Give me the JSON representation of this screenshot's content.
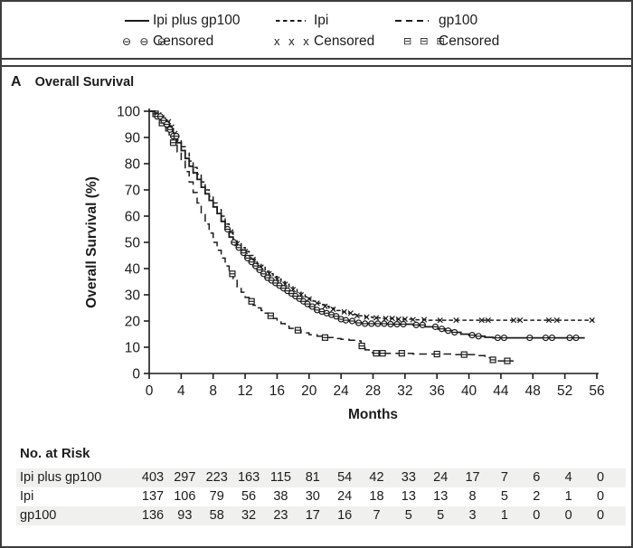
{
  "panel_label": "A",
  "panel_title": "Overall Survival",
  "colors": {
    "ink": "#1c1c1c",
    "stripe": "#f0f0ee",
    "border": "#3d3d3d"
  },
  "legend": {
    "series": [
      {
        "label": "Ipi plus gp100",
        "line": "solid",
        "censor_symbol": "⊖ ⊖ ⊖",
        "censor_label": "Censored"
      },
      {
        "label": "Ipi",
        "line": "dash",
        "censor_symbol": "x x x",
        "censor_label": "Censored"
      },
      {
        "label": "gp100",
        "line": "longdash",
        "censor_symbol": "⊟ ⊟ ⊟",
        "censor_label": "Censored"
      }
    ]
  },
  "chart_data": {
    "type": "line",
    "subtype": "kaplan-meier-step",
    "title": "Overall Survival",
    "xlabel": "Months",
    "ylabel": "Overall Survival (%)",
    "xlim": [
      0,
      56
    ],
    "ylim": [
      0,
      100
    ],
    "xticks": [
      0,
      4,
      8,
      12,
      16,
      20,
      24,
      28,
      32,
      36,
      40,
      44,
      48,
      52,
      56
    ],
    "yticks": [
      0,
      10,
      20,
      30,
      40,
      50,
      60,
      70,
      80,
      90,
      100
    ],
    "grid": false,
    "legend_position": "top",
    "series": [
      {
        "name": "gp100",
        "style": "longdash",
        "censor_marker": "square",
        "points": [
          [
            0,
            100
          ],
          [
            0.7,
            99
          ],
          [
            1,
            97.5
          ],
          [
            1.5,
            95.5
          ],
          [
            2,
            93.5
          ],
          [
            2.5,
            91
          ],
          [
            3,
            88
          ],
          [
            3.5,
            84.5
          ],
          [
            4,
            81
          ],
          [
            4.5,
            77
          ],
          [
            5,
            73
          ],
          [
            5.5,
            69
          ],
          [
            6,
            65
          ],
          [
            6.5,
            61
          ],
          [
            7,
            57
          ],
          [
            7.5,
            53.5
          ],
          [
            8,
            50
          ],
          [
            8.5,
            47
          ],
          [
            9,
            44
          ],
          [
            9.5,
            41
          ],
          [
            10,
            38
          ],
          [
            10.5,
            35.5
          ],
          [
            11,
            33
          ],
          [
            11.5,
            31
          ],
          [
            12,
            29
          ],
          [
            12.5,
            27.5
          ],
          [
            13,
            26
          ],
          [
            13.5,
            25
          ],
          [
            14,
            24
          ],
          [
            14.5,
            23
          ],
          [
            15,
            22
          ],
          [
            15.5,
            21
          ],
          [
            16,
            20
          ],
          [
            16.5,
            19
          ],
          [
            17,
            18
          ],
          [
            17.5,
            17.2
          ],
          [
            18,
            16.5
          ],
          [
            19,
            15.5
          ],
          [
            20,
            14.8
          ],
          [
            21,
            14.2
          ],
          [
            22,
            13.7
          ],
          [
            23,
            13.3
          ],
          [
            24,
            13
          ],
          [
            25,
            12.7
          ],
          [
            26,
            12.4
          ],
          [
            26.5,
            10.5
          ],
          [
            27,
            9
          ],
          [
            27.5,
            8
          ],
          [
            28,
            7.7
          ],
          [
            33,
            7.4
          ],
          [
            38,
            7.2
          ],
          [
            41,
            6.8
          ],
          [
            42,
            6
          ],
          [
            42.8,
            5.2
          ],
          [
            43.5,
            4.8
          ],
          [
            45.5,
            4.5
          ]
        ],
        "censor_months": [
          0.8,
          1.6,
          2.4,
          3.0,
          10.4,
          12.8,
          15.2,
          18.6,
          22.0,
          26.6,
          28.4,
          29.2,
          31.6,
          36.0,
          39.4,
          43.0,
          44.8
        ]
      },
      {
        "name": "Ipi",
        "style": "dash",
        "censor_marker": "x",
        "points": [
          [
            0,
            100
          ],
          [
            0.7,
            99.3
          ],
          [
            1,
            98.6
          ],
          [
            1.5,
            97.5
          ],
          [
            2,
            96
          ],
          [
            2.5,
            94
          ],
          [
            3,
            91.5
          ],
          [
            3.5,
            89
          ],
          [
            4,
            86.5
          ],
          [
            4.5,
            84
          ],
          [
            5,
            81
          ],
          [
            5.5,
            78.5
          ],
          [
            6,
            76
          ],
          [
            6.5,
            73
          ],
          [
            7,
            70
          ],
          [
            7.5,
            67.5
          ],
          [
            8,
            65
          ],
          [
            8.5,
            62.5
          ],
          [
            9,
            60
          ],
          [
            9.5,
            57
          ],
          [
            10,
            54
          ],
          [
            10.5,
            51
          ],
          [
            11,
            49.5
          ],
          [
            11.5,
            48
          ],
          [
            12,
            46.5
          ],
          [
            12.5,
            45
          ],
          [
            13,
            43.5
          ],
          [
            13.5,
            42
          ],
          [
            14,
            40.5
          ],
          [
            14.5,
            39
          ],
          [
            15,
            38
          ],
          [
            15.5,
            37
          ],
          [
            16,
            36
          ],
          [
            16.5,
            35
          ],
          [
            17,
            34
          ],
          [
            17.5,
            33
          ],
          [
            18,
            32
          ],
          [
            18.5,
            31
          ],
          [
            19,
            30
          ],
          [
            19.5,
            29.2
          ],
          [
            20,
            28.4
          ],
          [
            20.5,
            27.6
          ],
          [
            21,
            26.8
          ],
          [
            21.5,
            26.2
          ],
          [
            22,
            25.6
          ],
          [
            22.5,
            25
          ],
          [
            23,
            24.5
          ],
          [
            23.5,
            24
          ],
          [
            24,
            23.5
          ],
          [
            25,
            23
          ],
          [
            25.5,
            22.5
          ],
          [
            26,
            22
          ],
          [
            27,
            21.5
          ],
          [
            28,
            21.2
          ],
          [
            29,
            21
          ],
          [
            31,
            20.7
          ],
          [
            33,
            20.5
          ],
          [
            35,
            20.3
          ],
          [
            55.6,
            20.3
          ]
        ],
        "censor_months": [
          1.2,
          1.6,
          2.0,
          2.4,
          2.8,
          3.2,
          10.2,
          11.0,
          12.0,
          13.0,
          14.0,
          15.0,
          16.0,
          17.0,
          18.0,
          19.0,
          20.0,
          21.0,
          22.0,
          23.0,
          24.4,
          25.2,
          26.0,
          27.2,
          28.4,
          29.6,
          30.4,
          31.2,
          32.0,
          33.0,
          34.4,
          36.4,
          38.4,
          41.6,
          42.4,
          45.6,
          46.4,
          50.0,
          51.0,
          55.4
        ]
      },
      {
        "name": "Ipi plus gp100",
        "style": "solid",
        "censor_marker": "circle",
        "points": [
          [
            0,
            100
          ],
          [
            0.7,
            99
          ],
          [
            1,
            98
          ],
          [
            1.5,
            96.5
          ],
          [
            2,
            95
          ],
          [
            2.5,
            93
          ],
          [
            3,
            90.5
          ],
          [
            3.5,
            88
          ],
          [
            4,
            85
          ],
          [
            4.5,
            82
          ],
          [
            5,
            79
          ],
          [
            5.5,
            76.5
          ],
          [
            6,
            74
          ],
          [
            6.5,
            71
          ],
          [
            7,
            68.5
          ],
          [
            7.5,
            66
          ],
          [
            8,
            63.5
          ],
          [
            8.5,
            61
          ],
          [
            9,
            58
          ],
          [
            9.5,
            55
          ],
          [
            10,
            52
          ],
          [
            10.5,
            50
          ],
          [
            11,
            48
          ],
          [
            11.5,
            46
          ],
          [
            12,
            44
          ],
          [
            12.5,
            42.5
          ],
          [
            13,
            41
          ],
          [
            13.5,
            39.5
          ],
          [
            14,
            38
          ],
          [
            14.5,
            36.5
          ],
          [
            15,
            35.5
          ],
          [
            15.5,
            34.5
          ],
          [
            16,
            33.5
          ],
          [
            16.5,
            32.5
          ],
          [
            17,
            31.5
          ],
          [
            17.5,
            30.5
          ],
          [
            18,
            29.5
          ],
          [
            18.5,
            28.5
          ],
          [
            19,
            27.5
          ],
          [
            19.5,
            26.5
          ],
          [
            20,
            25.5
          ],
          [
            20.5,
            24.8
          ],
          [
            21,
            24.2
          ],
          [
            21.5,
            23.6
          ],
          [
            22,
            23
          ],
          [
            22.5,
            22.4
          ],
          [
            23,
            21.8
          ],
          [
            23.5,
            21.2
          ],
          [
            24,
            20.7
          ],
          [
            24.5,
            20.3
          ],
          [
            25,
            20
          ],
          [
            25.5,
            19.6
          ],
          [
            26,
            19.3
          ],
          [
            27,
            19
          ],
          [
            30,
            18.8
          ],
          [
            33,
            18.5
          ],
          [
            34.5,
            17.8
          ],
          [
            36,
            17
          ],
          [
            37,
            16.3
          ],
          [
            38,
            15.7
          ],
          [
            39,
            15
          ],
          [
            40,
            14.6
          ],
          [
            41,
            14.2
          ],
          [
            42,
            13.8
          ],
          [
            43,
            13.6
          ],
          [
            54.5,
            13.6
          ]
        ],
        "censor_months": [
          1.0,
          1.4,
          1.8,
          2.2,
          2.6,
          3.0,
          3.4,
          9.8,
          10.6,
          11.2,
          11.8,
          12.3,
          12.8,
          13.3,
          13.8,
          14.3,
          14.8,
          15.3,
          15.8,
          16.3,
          16.8,
          17.3,
          17.8,
          18.3,
          18.8,
          19.3,
          19.8,
          20.4,
          21.0,
          21.6,
          22.2,
          22.8,
          23.4,
          24.0,
          24.6,
          25.4,
          26.2,
          27.0,
          27.8,
          28.6,
          29.4,
          30.2,
          31.0,
          31.8,
          33.4,
          34.2,
          35.8,
          36.6,
          37.4,
          38.2,
          40.4,
          41.2,
          43.6,
          44.4,
          47.6,
          49.6,
          50.4,
          52.6,
          53.4
        ]
      }
    ]
  },
  "risk_table": {
    "title": "No. at Risk",
    "months": [
      0,
      4,
      8,
      12,
      16,
      20,
      24,
      28,
      32,
      36,
      40,
      44,
      48,
      52,
      56
    ],
    "rows": [
      {
        "label": "Ipi plus gp100",
        "values": [
          403,
          297,
          223,
          163,
          115,
          81,
          54,
          42,
          33,
          24,
          17,
          7,
          6,
          4,
          0
        ]
      },
      {
        "label": "Ipi",
        "values": [
          137,
          106,
          79,
          56,
          38,
          30,
          24,
          18,
          13,
          13,
          8,
          5,
          2,
          1,
          0
        ]
      },
      {
        "label": "gp100",
        "values": [
          136,
          93,
          58,
          32,
          23,
          17,
          16,
          7,
          5,
          5,
          3,
          1,
          0,
          0,
          0
        ]
      }
    ]
  }
}
